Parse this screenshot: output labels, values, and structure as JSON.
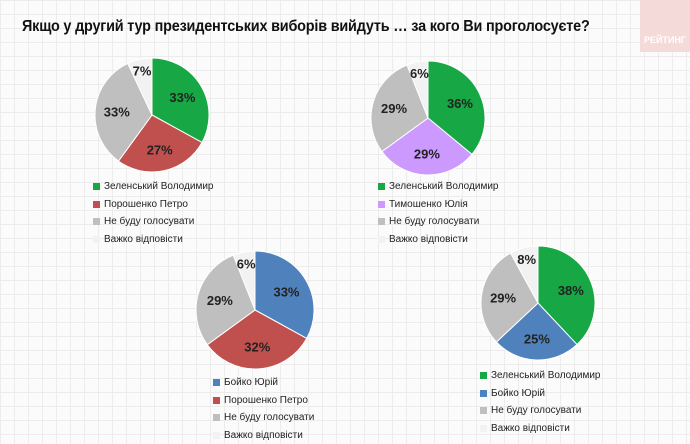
{
  "title": "Якщо у другий тур президентських виборів вийдуть … за кого Ви проголосуєте?",
  "logo": "РЕЙТИНГ",
  "chart_data": [
    {
      "type": "pie",
      "labels": [
        "Зеленський Володимир",
        "Порошенко Петро",
        "Не буду голосувати",
        "Важко відповісти"
      ],
      "values": [
        33,
        27,
        33,
        7
      ],
      "colors": [
        "#17a845",
        "#c0504d",
        "#bfbfbf",
        "#f2f2f2"
      ]
    },
    {
      "type": "pie",
      "labels": [
        "Зеленський Володимир",
        "Тимошенко Юлія",
        "Не буду голосувати",
        "Важко відповісти"
      ],
      "values": [
        36,
        29,
        29,
        6
      ],
      "colors": [
        "#17a845",
        "#cc99ff",
        "#bfbfbf",
        "#f2f2f2"
      ]
    },
    {
      "type": "pie",
      "labels": [
        "Бойко Юрій",
        "Порошенко Петро",
        "Не буду голосувати",
        "Важко відповісти"
      ],
      "values": [
        33,
        32,
        29,
        6
      ],
      "colors": [
        "#4f81bd",
        "#c0504d",
        "#bfbfbf",
        "#f2f2f2"
      ]
    },
    {
      "type": "pie",
      "labels": [
        "Зеленський Володимир",
        "Бойко Юрій",
        "Не буду голосувати",
        "Важко відповісти"
      ],
      "values": [
        38,
        25,
        29,
        8
      ],
      "colors": [
        "#17a845",
        "#4f81bd",
        "#bfbfbf",
        "#f2f2f2"
      ]
    }
  ]
}
